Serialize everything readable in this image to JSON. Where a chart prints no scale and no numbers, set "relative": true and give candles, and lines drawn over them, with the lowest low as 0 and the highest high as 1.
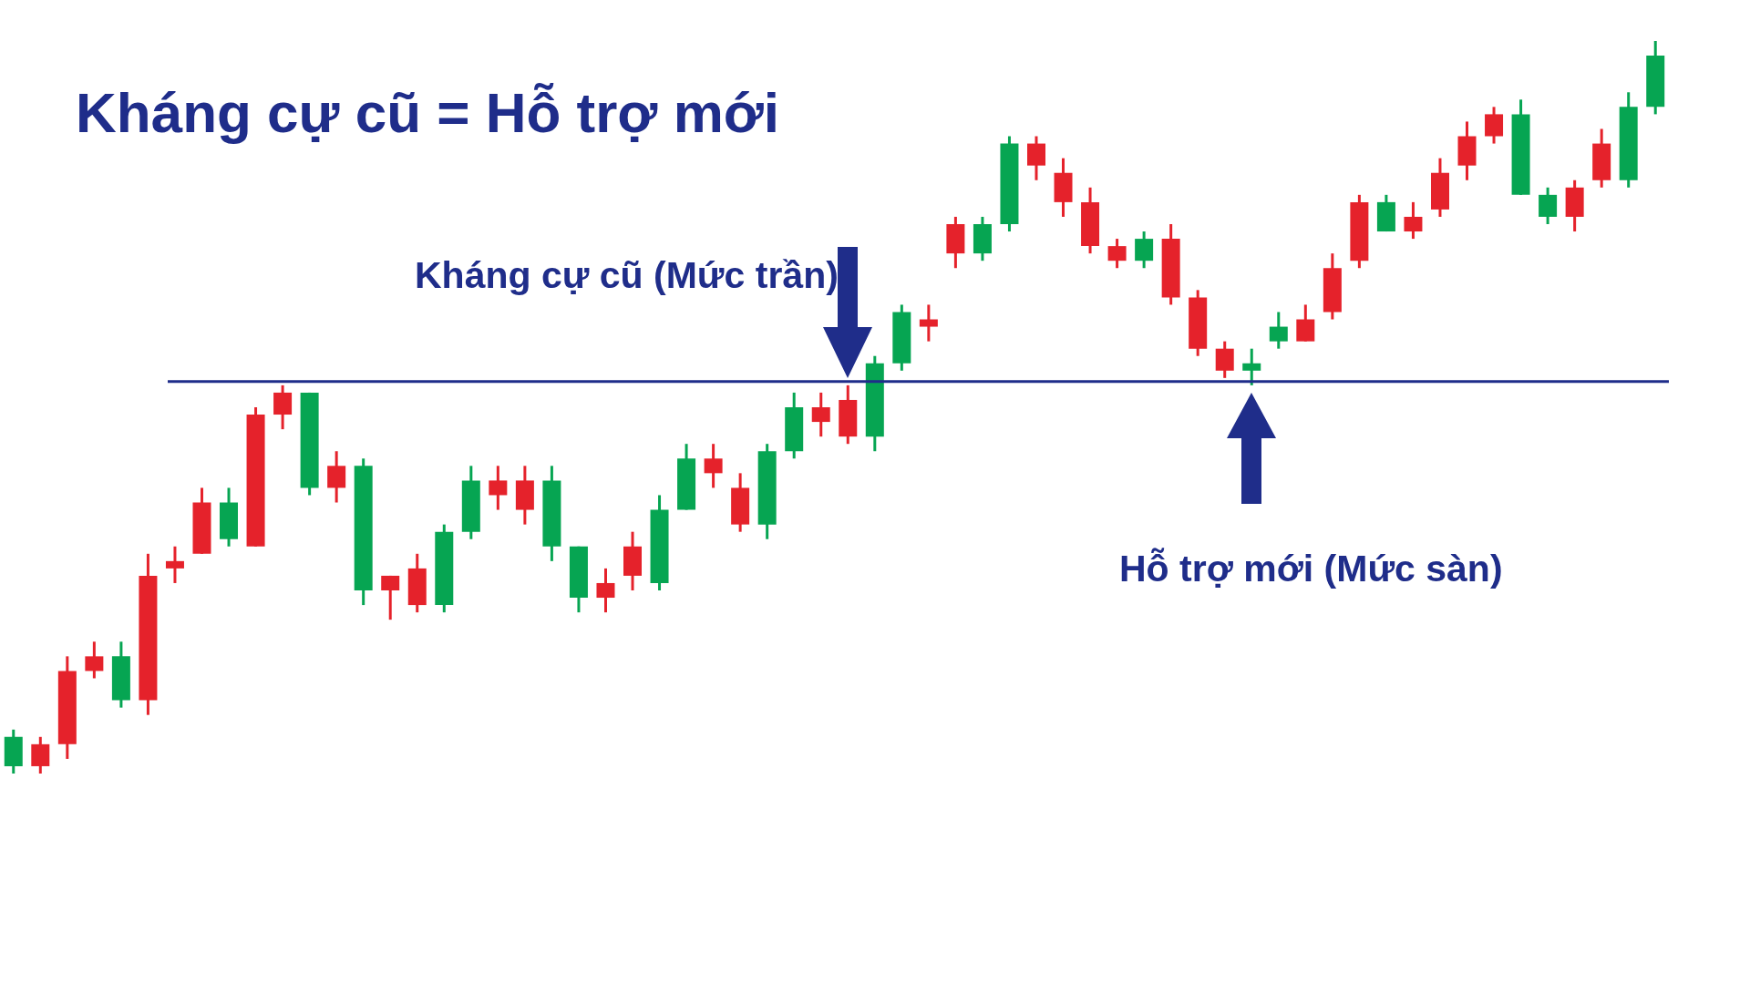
{
  "chart_data": {
    "type": "candlestick",
    "relative": true,
    "title": "Kháng cự cũ = Hỗ trợ mới",
    "annotations": [
      "Kháng cự cũ (Mức trần)",
      "Hỗ trợ mới (Mức sàn)"
    ],
    "ref_lines": [
      {
        "axis": "y",
        "value": 0.535,
        "color": "#1f2d8a"
      }
    ],
    "categories": [
      null,
      null,
      null,
      null,
      null,
      null,
      null,
      null,
      null,
      null,
      null,
      null,
      null,
      null,
      null,
      null,
      null,
      null,
      null,
      null,
      null,
      null,
      null,
      null,
      null,
      null,
      null,
      null,
      null,
      null,
      null,
      null,
      null,
      null,
      null,
      null,
      null,
      null,
      null,
      null,
      null,
      null,
      null,
      null,
      null,
      null,
      null,
      null,
      null,
      null,
      null,
      null,
      null,
      null,
      null,
      null,
      null,
      null,
      null,
      null,
      null,
      null
    ],
    "ohlc": [
      [
        0.01,
        0.06,
        0.0,
        0.05
      ],
      [
        0.04,
        0.05,
        0.0,
        0.01
      ],
      [
        0.14,
        0.16,
        0.02,
        0.04
      ],
      [
        0.16,
        0.18,
        0.13,
        0.14
      ],
      [
        0.1,
        0.18,
        0.09,
        0.16
      ],
      [
        0.27,
        0.3,
        0.08,
        0.1
      ],
      [
        0.29,
        0.31,
        0.26,
        0.28
      ],
      [
        0.37,
        0.39,
        0.3,
        0.3
      ],
      [
        0.32,
        0.39,
        0.31,
        0.37
      ],
      [
        0.49,
        0.5,
        0.31,
        0.31
      ],
      [
        0.52,
        0.53,
        0.47,
        0.49
      ],
      [
        0.39,
        0.52,
        0.38,
        0.52
      ],
      [
        0.42,
        0.44,
        0.37,
        0.39
      ],
      [
        0.25,
        0.43,
        0.23,
        0.42
      ],
      [
        0.27,
        0.27,
        0.21,
        0.25
      ],
      [
        0.28,
        0.3,
        0.22,
        0.23
      ],
      [
        0.23,
        0.34,
        0.22,
        0.33
      ],
      [
        0.33,
        0.42,
        0.32,
        0.4
      ],
      [
        0.4,
        0.42,
        0.36,
        0.38
      ],
      [
        0.4,
        0.42,
        0.34,
        0.36
      ],
      [
        0.31,
        0.42,
        0.29,
        0.4
      ],
      [
        0.24,
        0.31,
        0.22,
        0.31
      ],
      [
        0.26,
        0.28,
        0.22,
        0.24
      ],
      [
        0.31,
        0.33,
        0.25,
        0.27
      ],
      [
        0.26,
        0.38,
        0.25,
        0.36
      ],
      [
        0.36,
        0.45,
        0.36,
        0.43
      ],
      [
        0.43,
        0.45,
        0.39,
        0.41
      ],
      [
        0.39,
        0.41,
        0.33,
        0.34
      ],
      [
        0.34,
        0.45,
        0.32,
        0.44
      ],
      [
        0.44,
        0.52,
        0.43,
        0.5
      ],
      [
        0.5,
        0.52,
        0.46,
        0.48
      ],
      [
        0.51,
        0.53,
        0.45,
        0.46
      ],
      [
        0.46,
        0.57,
        0.44,
        0.56
      ],
      [
        0.56,
        0.64,
        0.55,
        0.63
      ],
      [
        0.62,
        0.64,
        0.59,
        0.61
      ],
      [
        0.75,
        0.76,
        0.69,
        0.71
      ],
      [
        0.71,
        0.76,
        0.7,
        0.75
      ],
      [
        0.75,
        0.87,
        0.74,
        0.86
      ],
      [
        0.86,
        0.87,
        0.81,
        0.83
      ],
      [
        0.82,
        0.84,
        0.76,
        0.78
      ],
      [
        0.78,
        0.8,
        0.71,
        0.72
      ],
      [
        0.72,
        0.73,
        0.69,
        0.7
      ],
      [
        0.7,
        0.74,
        0.69,
        0.73
      ],
      [
        0.73,
        0.75,
        0.64,
        0.65
      ],
      [
        0.65,
        0.66,
        0.57,
        0.58
      ],
      [
        0.58,
        0.59,
        0.54,
        0.55
      ],
      [
        0.55,
        0.58,
        0.53,
        0.56
      ],
      [
        0.59,
        0.63,
        0.58,
        0.61
      ],
      [
        0.62,
        0.64,
        0.59,
        0.59
      ],
      [
        0.69,
        0.71,
        0.62,
        0.63
      ],
      [
        0.78,
        0.79,
        0.69,
        0.7
      ],
      [
        0.74,
        0.79,
        0.74,
        0.78
      ],
      [
        0.76,
        0.78,
        0.73,
        0.74
      ],
      [
        0.82,
        0.84,
        0.76,
        0.77
      ],
      [
        0.87,
        0.89,
        0.81,
        0.83
      ],
      [
        0.9,
        0.91,
        0.86,
        0.87
      ],
      [
        0.79,
        0.92,
        0.79,
        0.9
      ],
      [
        0.76,
        0.8,
        0.75,
        0.79
      ],
      [
        0.8,
        0.81,
        0.74,
        0.76
      ],
      [
        0.86,
        0.88,
        0.8,
        0.81
      ],
      [
        0.81,
        0.93,
        0.8,
        0.91
      ],
      [
        0.91,
        1.0,
        0.9,
        0.98
      ]
    ],
    "colors": [
      "#06a552",
      "#e5222b",
      "#e5222b",
      "#e5222b",
      "#06a552",
      "#e5222b",
      "#e5222b",
      "#e5222b",
      "#06a552",
      "#e5222b",
      "#e5222b",
      "#06a552",
      "#e5222b",
      "#06a552",
      "#e5222b",
      "#e5222b",
      "#06a552",
      "#06a552",
      "#e5222b",
      "#e5222b",
      "#06a552",
      "#06a552",
      "#e5222b",
      "#e5222b",
      "#06a552",
      "#06a552",
      "#e5222b",
      "#e5222b",
      "#06a552",
      "#06a552",
      "#e5222b",
      "#e5222b",
      "#06a552",
      "#06a552",
      "#e5222b",
      "#e5222b",
      "#06a552",
      "#06a552",
      "#e5222b",
      "#e5222b",
      "#e5222b",
      "#e5222b",
      "#06a552",
      "#e5222b",
      "#e5222b",
      "#e5222b",
      "#06a552",
      "#06a552",
      "#e5222b",
      "#e5222b",
      "#e5222b",
      "#06a552",
      "#e5222b",
      "#e5222b",
      "#e5222b",
      "#e5222b",
      "#06a552",
      "#06a552",
      "#e5222b",
      "#e5222b",
      "#06a552",
      "#06a552"
    ]
  }
}
